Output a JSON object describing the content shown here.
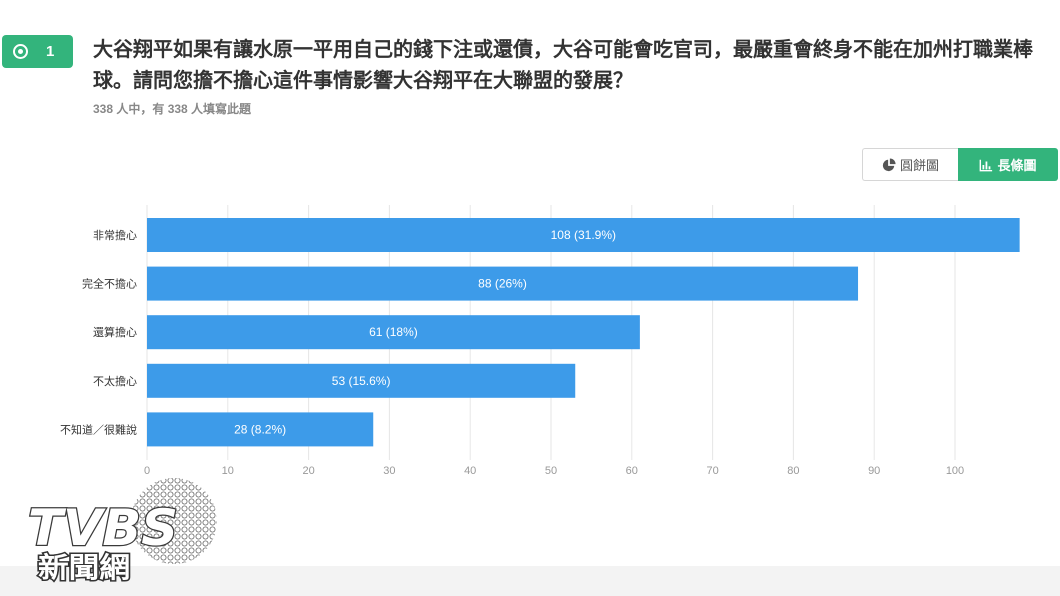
{
  "question": {
    "number": "1",
    "text": "大谷翔平如果有讓水原一平用自己的錢下注或還債，大谷可能會吃官司，最嚴重會終身不能在加州打職業棒球。請問您擔不擔心這件事情影響大谷翔平在大聯盟的發展？",
    "response_summary": "338 人中，有 338 人填寫此題"
  },
  "view_toggle": {
    "pie_label": "圓餅圖",
    "bar_label": "長條圖",
    "active": "bar"
  },
  "icons": {
    "question_type": "radio-icon",
    "pie_button": "pie-chart-icon",
    "bar_button": "bar-chart-icon"
  },
  "colors": {
    "accent": "#33b47c",
    "bar": "#3d9be9"
  },
  "chart_data": {
    "type": "bar",
    "orientation": "horizontal",
    "categories": [
      "非常擔心",
      "完全不擔心",
      "還算擔心",
      "不太擔心",
      "不知道／很難說"
    ],
    "values": [
      108,
      88,
      61,
      53,
      28
    ],
    "percents": [
      31.9,
      26,
      18,
      15.6,
      8.2
    ],
    "xticks": [
      0,
      10,
      20,
      30,
      40,
      50,
      60,
      70,
      80,
      90,
      100
    ],
    "xlim": [
      0,
      108
    ],
    "grid": true
  },
  "watermark": {
    "brand": "TVBS",
    "sub": "新聞網"
  }
}
